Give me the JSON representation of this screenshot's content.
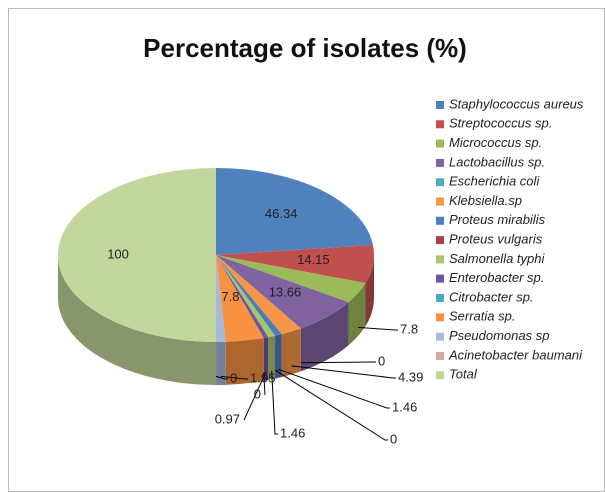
{
  "chart_data": {
    "type": "pie3d",
    "title": "Percentage of isolates (%)",
    "categories": [
      "Staphylococcus aureus",
      "Streptococcus sp.",
      "Micrococcus sp.",
      "Lactobacillus sp.",
      "Escherichia coli",
      "Klebsiella.sp",
      "Proteus mirabilis",
      "Proteus vulgaris",
      "Salmonella typhi",
      "Enterobacter sp.",
      "Citrobacter sp.",
      "Serratia sp.",
      "Pseudomonas sp",
      "Acinetobacter baumani",
      "Total"
    ],
    "values": [
      46.34,
      14.15,
      7.8,
      13.66,
      0,
      4.39,
      1.46,
      0,
      1.46,
      0.97,
      0,
      7.8,
      1.95,
      0,
      100
    ],
    "colors": [
      "#4F81BD",
      "#C0504D",
      "#9BBB59",
      "#8064A2",
      "#4BACC6",
      "#F79646",
      "#4A7EBB",
      "#A9403D",
      "#A8C56C",
      "#7154A0",
      "#46AAC5",
      "#F69240",
      "#A5B9D9",
      "#D9A5A4",
      "#C3D69B"
    ],
    "legend": "right"
  }
}
